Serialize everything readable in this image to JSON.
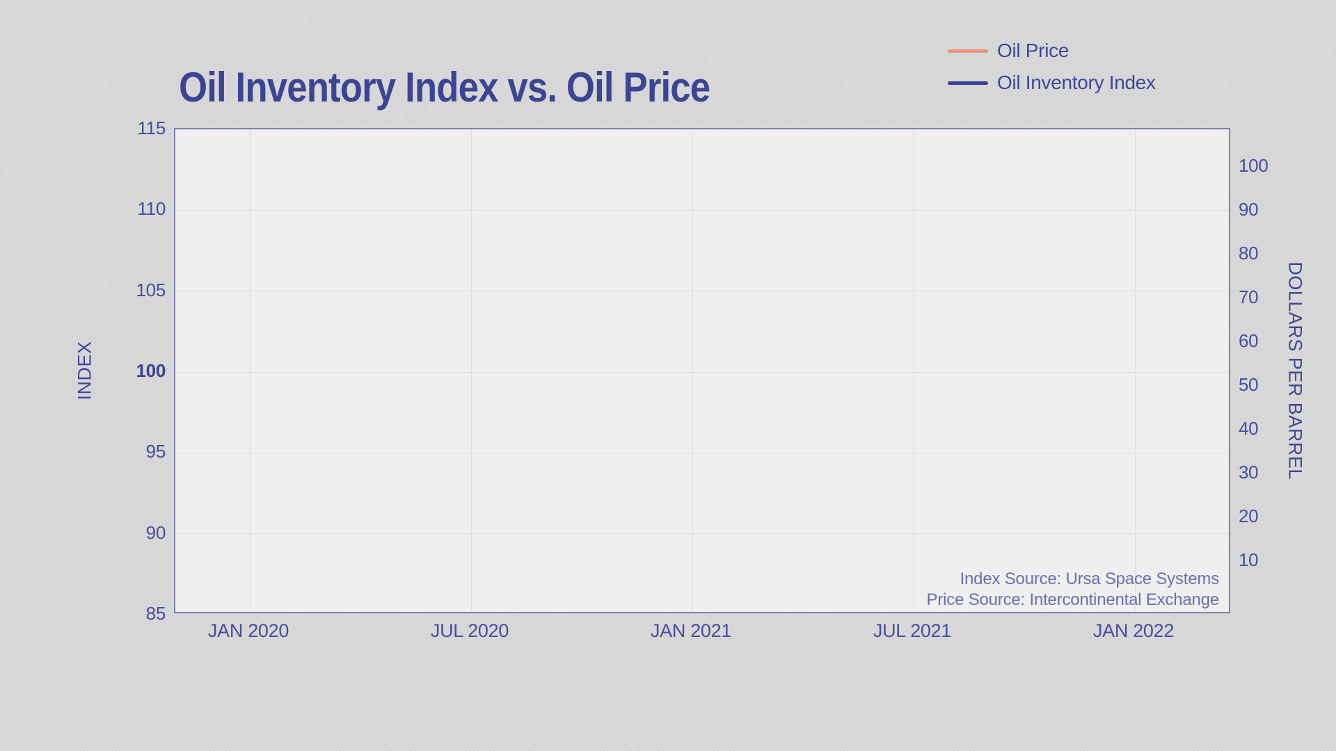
{
  "chart_data": {
    "type": "line",
    "title": "Oil Inventory Index vs. Oil Price",
    "x_tick_labels": [
      "JAN 2020",
      "JUL 2020",
      "JAN 2021",
      "JUL 2021",
      "JAN 2022"
    ],
    "left_axis": {
      "title": "INDEX",
      "range": [
        85,
        115
      ],
      "ticks": [
        "115",
        "110",
        "105",
        "100",
        "95",
        "90",
        "85"
      ],
      "bold_tick": "100"
    },
    "right_axis": {
      "title": "DOLLARS PER BARREL",
      "ticks": [
        "100",
        "90",
        "80",
        "70",
        "60",
        "50",
        "40",
        "30",
        "20",
        "10"
      ]
    },
    "grid": true,
    "legend_position": "top-right",
    "series": [
      {
        "name": "Oil Price",
        "color": "#EA9479",
        "axis": "right",
        "values": []
      },
      {
        "name": "Oil Inventory Index",
        "color": "#3A4290",
        "axis": "left",
        "values": []
      }
    ]
  },
  "sources": {
    "line1": "Index Source: Ursa Space Systems",
    "line2": "Price Source: Intercontinental Exchange"
  },
  "colors": {
    "page_background": "#d6d6d7",
    "plot_background": "#efeff0",
    "plot_border": "#7B80B6",
    "gridline": "#dcdce0",
    "title_text": "#3C4593",
    "tick_text": "#454E9C",
    "source_text": "#6670AB",
    "oil_price_line": "#EA9479",
    "inventory_index_line": "#3A4290"
  }
}
